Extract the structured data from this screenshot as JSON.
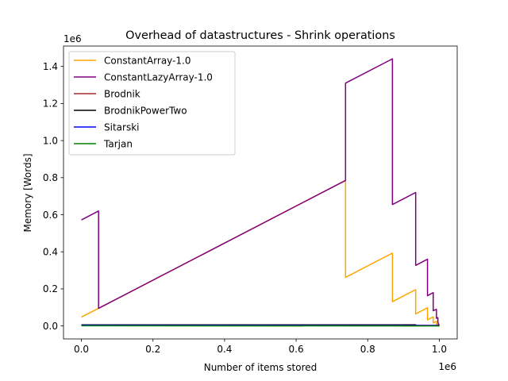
{
  "chart_data": {
    "type": "line",
    "title": "Overhead of datastructures - Shrink operations",
    "xlabel": "Number of items stored",
    "ylabel": "Memory [Words]",
    "x_offset_label": "1e6",
    "y_offset_label": "1e6",
    "xlim": [
      -50000,
      1050000
    ],
    "ylim": [
      -70000,
      1510000
    ],
    "x_ticks": [
      0,
      200000,
      400000,
      600000,
      800000,
      1000000
    ],
    "x_tick_labels": [
      "0.0",
      "0.2",
      "0.4",
      "0.6",
      "0.8",
      "1.0"
    ],
    "y_ticks": [
      0,
      200000,
      400000,
      600000,
      800000,
      1000000,
      1200000,
      1400000
    ],
    "y_tick_labels": [
      "0.0",
      "0.2",
      "0.4",
      "0.6",
      "0.8",
      "1.0",
      "1.2",
      "1.4"
    ],
    "grid": false,
    "legend_position": "top-left",
    "series": [
      {
        "name": "ConstantArray-1.0",
        "color": "#ffa500",
        "points": [
          [
            0,
            48000
          ],
          [
            48000,
            95000
          ],
          [
            738000,
            785000
          ],
          [
            738000,
            262000
          ],
          [
            869000,
            393000
          ],
          [
            869000,
            131000
          ],
          [
            934000,
            196000
          ],
          [
            934000,
            65000
          ],
          [
            967000,
            98000
          ],
          [
            967000,
            33000
          ],
          [
            983000,
            49000
          ],
          [
            983000,
            16000
          ],
          [
            992000,
            25000
          ],
          [
            992000,
            8000
          ],
          [
            996000,
            12000
          ],
          [
            996000,
            4000
          ],
          [
            1000000,
            0
          ]
        ]
      },
      {
        "name": "ConstantLazyArray-1.0",
        "color": "#800080",
        "points": [
          [
            0,
            572000
          ],
          [
            48000,
            620000
          ],
          [
            48000,
            95000
          ],
          [
            738000,
            785000
          ],
          [
            738000,
            1310000
          ],
          [
            869000,
            1441000
          ],
          [
            869000,
            655000
          ],
          [
            934000,
            720000
          ],
          [
            934000,
            327000
          ],
          [
            967000,
            360000
          ],
          [
            967000,
            163000
          ],
          [
            983000,
            180000
          ],
          [
            983000,
            82000
          ],
          [
            992000,
            90000
          ],
          [
            992000,
            41000
          ],
          [
            996000,
            45000
          ],
          [
            996000,
            20000
          ],
          [
            1000000,
            0
          ]
        ]
      },
      {
        "name": "Brodnik",
        "color": "#a52a2a",
        "points": [
          [
            0,
            5000
          ],
          [
            1000000,
            3000
          ]
        ]
      },
      {
        "name": "BrodnikPowerTwo",
        "color": "#000000",
        "points": [
          [
            0,
            6000
          ],
          [
            934000,
            6000
          ],
          [
            934000,
            3000
          ],
          [
            1000000,
            2000
          ]
        ]
      },
      {
        "name": "Sitarski",
        "color": "#0000ff",
        "points": [
          [
            0,
            4000
          ],
          [
            1000000,
            2000
          ]
        ]
      },
      {
        "name": "Tarjan",
        "color": "#008000",
        "points": [
          [
            0,
            1000
          ],
          [
            1000000,
            0
          ]
        ]
      }
    ]
  }
}
